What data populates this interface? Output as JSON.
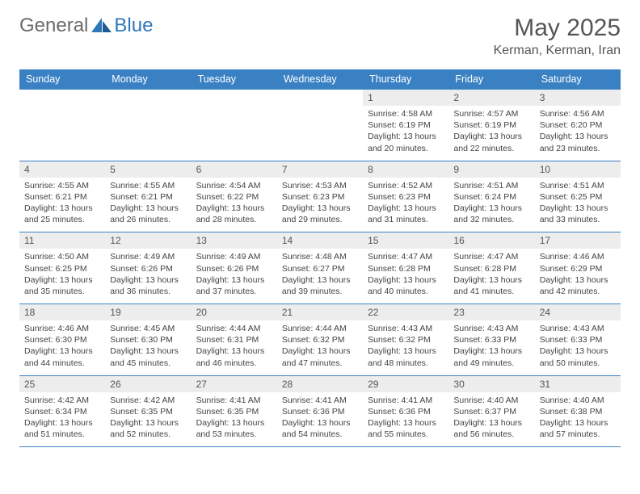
{
  "logo": {
    "text1": "General",
    "text2": "Blue"
  },
  "title": "May 2025",
  "location": "Kerman, Kerman, Iran",
  "colors": {
    "header_bg": "#3a81c4",
    "header_text": "#ffffff",
    "daynum_bg": "#ededed",
    "border": "#3a81c4",
    "logo_gray": "#6a6a6a",
    "logo_blue": "#2f77b8"
  },
  "weekdays": [
    "Sunday",
    "Monday",
    "Tuesday",
    "Wednesday",
    "Thursday",
    "Friday",
    "Saturday"
  ],
  "weeks": [
    [
      {
        "empty": true
      },
      {
        "empty": true
      },
      {
        "empty": true
      },
      {
        "empty": true
      },
      {
        "num": "1",
        "sunrise": "4:58 AM",
        "sunset": "6:19 PM",
        "daylight": "13 hours and 20 minutes."
      },
      {
        "num": "2",
        "sunrise": "4:57 AM",
        "sunset": "6:19 PM",
        "daylight": "13 hours and 22 minutes."
      },
      {
        "num": "3",
        "sunrise": "4:56 AM",
        "sunset": "6:20 PM",
        "daylight": "13 hours and 23 minutes."
      }
    ],
    [
      {
        "num": "4",
        "sunrise": "4:55 AM",
        "sunset": "6:21 PM",
        "daylight": "13 hours and 25 minutes."
      },
      {
        "num": "5",
        "sunrise": "4:55 AM",
        "sunset": "6:21 PM",
        "daylight": "13 hours and 26 minutes."
      },
      {
        "num": "6",
        "sunrise": "4:54 AM",
        "sunset": "6:22 PM",
        "daylight": "13 hours and 28 minutes."
      },
      {
        "num": "7",
        "sunrise": "4:53 AM",
        "sunset": "6:23 PM",
        "daylight": "13 hours and 29 minutes."
      },
      {
        "num": "8",
        "sunrise": "4:52 AM",
        "sunset": "6:23 PM",
        "daylight": "13 hours and 31 minutes."
      },
      {
        "num": "9",
        "sunrise": "4:51 AM",
        "sunset": "6:24 PM",
        "daylight": "13 hours and 32 minutes."
      },
      {
        "num": "10",
        "sunrise": "4:51 AM",
        "sunset": "6:25 PM",
        "daylight": "13 hours and 33 minutes."
      }
    ],
    [
      {
        "num": "11",
        "sunrise": "4:50 AM",
        "sunset": "6:25 PM",
        "daylight": "13 hours and 35 minutes."
      },
      {
        "num": "12",
        "sunrise": "4:49 AM",
        "sunset": "6:26 PM",
        "daylight": "13 hours and 36 minutes."
      },
      {
        "num": "13",
        "sunrise": "4:49 AM",
        "sunset": "6:26 PM",
        "daylight": "13 hours and 37 minutes."
      },
      {
        "num": "14",
        "sunrise": "4:48 AM",
        "sunset": "6:27 PM",
        "daylight": "13 hours and 39 minutes."
      },
      {
        "num": "15",
        "sunrise": "4:47 AM",
        "sunset": "6:28 PM",
        "daylight": "13 hours and 40 minutes."
      },
      {
        "num": "16",
        "sunrise": "4:47 AM",
        "sunset": "6:28 PM",
        "daylight": "13 hours and 41 minutes."
      },
      {
        "num": "17",
        "sunrise": "4:46 AM",
        "sunset": "6:29 PM",
        "daylight": "13 hours and 42 minutes."
      }
    ],
    [
      {
        "num": "18",
        "sunrise": "4:46 AM",
        "sunset": "6:30 PM",
        "daylight": "13 hours and 44 minutes."
      },
      {
        "num": "19",
        "sunrise": "4:45 AM",
        "sunset": "6:30 PM",
        "daylight": "13 hours and 45 minutes."
      },
      {
        "num": "20",
        "sunrise": "4:44 AM",
        "sunset": "6:31 PM",
        "daylight": "13 hours and 46 minutes."
      },
      {
        "num": "21",
        "sunrise": "4:44 AM",
        "sunset": "6:32 PM",
        "daylight": "13 hours and 47 minutes."
      },
      {
        "num": "22",
        "sunrise": "4:43 AM",
        "sunset": "6:32 PM",
        "daylight": "13 hours and 48 minutes."
      },
      {
        "num": "23",
        "sunrise": "4:43 AM",
        "sunset": "6:33 PM",
        "daylight": "13 hours and 49 minutes."
      },
      {
        "num": "24",
        "sunrise": "4:43 AM",
        "sunset": "6:33 PM",
        "daylight": "13 hours and 50 minutes."
      }
    ],
    [
      {
        "num": "25",
        "sunrise": "4:42 AM",
        "sunset": "6:34 PM",
        "daylight": "13 hours and 51 minutes."
      },
      {
        "num": "26",
        "sunrise": "4:42 AM",
        "sunset": "6:35 PM",
        "daylight": "13 hours and 52 minutes."
      },
      {
        "num": "27",
        "sunrise": "4:41 AM",
        "sunset": "6:35 PM",
        "daylight": "13 hours and 53 minutes."
      },
      {
        "num": "28",
        "sunrise": "4:41 AM",
        "sunset": "6:36 PM",
        "daylight": "13 hours and 54 minutes."
      },
      {
        "num": "29",
        "sunrise": "4:41 AM",
        "sunset": "6:36 PM",
        "daylight": "13 hours and 55 minutes."
      },
      {
        "num": "30",
        "sunrise": "4:40 AM",
        "sunset": "6:37 PM",
        "daylight": "13 hours and 56 minutes."
      },
      {
        "num": "31",
        "sunrise": "4:40 AM",
        "sunset": "6:38 PM",
        "daylight": "13 hours and 57 minutes."
      }
    ]
  ],
  "labels": {
    "sunrise": "Sunrise: ",
    "sunset": "Sunset: ",
    "daylight": "Daylight: "
  }
}
